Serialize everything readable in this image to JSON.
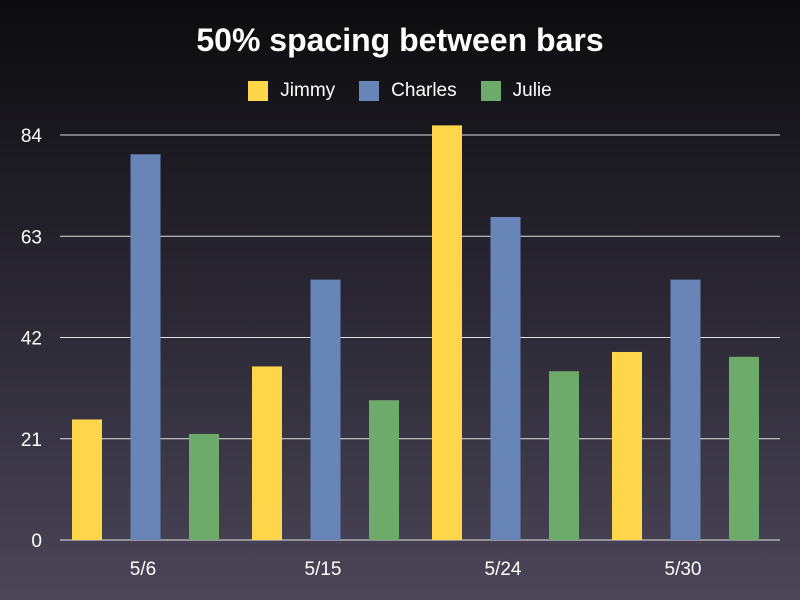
{
  "chart_data": {
    "type": "bar",
    "title": "50% spacing between bars",
    "categories": [
      "5/6",
      "5/15",
      "5/24",
      "5/30"
    ],
    "series": [
      {
        "name": "Jimmy",
        "color": "#ffd54a",
        "values": [
          25,
          36,
          86,
          39
        ]
      },
      {
        "name": "Charles",
        "color": "#6785b6",
        "values": [
          80,
          54,
          67,
          54
        ]
      },
      {
        "name": "Julie",
        "color": "#6dab6b",
        "values": [
          22,
          29,
          35,
          38
        ]
      }
    ],
    "y_ticks": [
      0,
      21,
      42,
      63,
      84
    ],
    "ylim": [
      0,
      84
    ],
    "grid": true,
    "legend_position": "top"
  }
}
